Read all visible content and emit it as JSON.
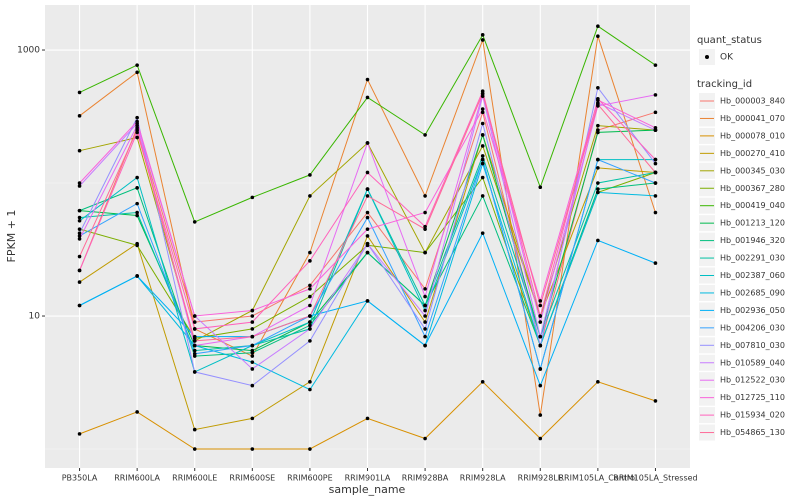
{
  "chart_data": {
    "type": "line",
    "x_label": "sample_name",
    "y_label": "FPKM + 1",
    "log_scale": true,
    "grid": true,
    "minor_yticks": [
      1,
      100
    ],
    "ylim": [
      0.72,
      2180
    ],
    "yticks": [
      10,
      1000
    ],
    "point_color": "#000000",
    "point_legend": {
      "title": "quant_status",
      "labels": [
        "OK"
      ]
    },
    "legend_title": "tracking_id",
    "legend_position": "right",
    "categories": [
      "PB350LA",
      "RRIM600LA",
      "RRIM600LE",
      "RRIM600SE",
      "RRIM600PE",
      "RRIM901LA",
      "RRIM928BA",
      "RRIM928LA",
      "RRIM928LE",
      "RRIM105LA_Control",
      "RRIM105LA_Stressed"
    ],
    "series": [
      {
        "name": "Hb_000003_840",
        "color": "#F8766D",
        "values": [
          22,
          260,
          9,
          10,
          17,
          60,
          16,
          340,
          6,
          250,
          340
        ]
      },
      {
        "name": "Hb_000041_070",
        "color": "#EA8331",
        "values": [
          320,
          680,
          8,
          5,
          30,
          600,
          80,
          1190,
          1.8,
          1270,
          60
        ]
      },
      {
        "name": "Hb_000078_010",
        "color": "#D89000",
        "values": [
          1.3,
          1.9,
          1.0,
          1.0,
          1.0,
          1.7,
          1.2,
          3.2,
          1.2,
          3.2,
          2.3
        ]
      },
      {
        "name": "Hb_000270_410",
        "color": "#C09B00",
        "values": [
          18,
          35,
          1.4,
          1.7,
          3.2,
          40,
          9,
          230,
          10,
          130,
          120
        ]
      },
      {
        "name": "Hb_000345_030",
        "color": "#A3A500",
        "values": [
          175,
          220,
          6.5,
          11,
          80,
          200,
          30,
          190,
          10,
          270,
          250
        ]
      },
      {
        "name": "Hb_000367_280",
        "color": "#7CAE00",
        "values": [
          45,
          34,
          6.8,
          8,
          14,
          34,
          30,
          110,
          6,
          85,
          120
        ]
      },
      {
        "name": "Hb_000419_040",
        "color": "#39B600",
        "values": [
          480,
          770,
          51,
          78,
          115,
          440,
          230,
          1300,
          93,
          1510,
          770
        ]
      },
      {
        "name": "Hb_001213_120",
        "color": "#00BB4E",
        "values": [
          62,
          57,
          6,
          5.5,
          9,
          30,
          12,
          230,
          7,
          240,
          250
        ]
      },
      {
        "name": "Hb_001946_320",
        "color": "#00BF7D",
        "values": [
          62,
          92,
          5,
          5.3,
          8.5,
          30,
          12,
          80,
          6,
          90,
          100
        ]
      },
      {
        "name": "Hb_002291_030",
        "color": "#00C1A3",
        "values": [
          55,
          60,
          5.5,
          6,
          8,
          90,
          12,
          160,
          7,
          100,
          120
        ]
      },
      {
        "name": "Hb_002387_060",
        "color": "#00BFC4",
        "values": [
          52,
          110,
          3.8,
          6,
          9,
          90,
          11,
          150,
          4,
          150,
          150
        ]
      },
      {
        "name": "Hb_002685_090",
        "color": "#00BAE0",
        "values": [
          12,
          20,
          6,
          4.5,
          2.8,
          13,
          6,
          140,
          6,
          85,
          80
        ]
      },
      {
        "name": "Hb_002936_050",
        "color": "#00B0F6",
        "values": [
          12,
          20,
          7,
          7,
          10,
          13,
          6,
          42,
          3,
          37,
          25
        ]
      },
      {
        "name": "Hb_004206_030",
        "color": "#35A2FF",
        "values": [
          40,
          70,
          5.2,
          6,
          10,
          55,
          7,
          150,
          4,
          150,
          100
        ]
      },
      {
        "name": "Hb_007810_030",
        "color": "#9590FF",
        "values": [
          42,
          310,
          3.8,
          3,
          6.5,
          35,
          8,
          280,
          6,
          520,
          140
        ]
      },
      {
        "name": "Hb_010589_040",
        "color": "#C77CFF",
        "values": [
          95,
          280,
          10,
          4,
          8,
          35,
          10,
          450,
          7,
          400,
          250
        ]
      },
      {
        "name": "Hb_012522_030",
        "color": "#E76BF3",
        "values": [
          38,
          270,
          6,
          7,
          12,
          200,
          14,
          470,
          9,
          380,
          460
        ]
      },
      {
        "name": "Hb_012725_110",
        "color": "#FA62DB",
        "values": [
          100,
          290,
          10,
          11,
          16,
          45,
          60,
          360,
          13,
          420,
          260
        ]
      },
      {
        "name": "Hb_015934_020",
        "color": "#FF62BC",
        "values": [
          22,
          240,
          8,
          9,
          26,
          120,
          47,
          490,
          10,
          430,
          150
        ]
      },
      {
        "name": "Hb_054865_130",
        "color": "#FF6A98",
        "values": [
          28,
          250,
          6.5,
          7,
          10,
          80,
          45,
          470,
          12,
          390,
          120
        ]
      }
    ]
  }
}
